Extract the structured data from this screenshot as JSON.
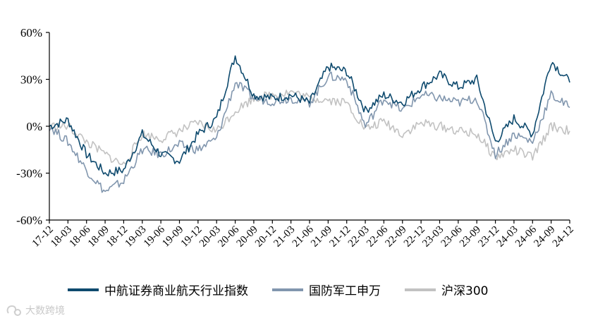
{
  "chart_data": {
    "type": "line",
    "title": "",
    "xlabel": "",
    "ylabel": "",
    "ylim": [
      -60,
      60
    ],
    "yticks": [
      "60%",
      "30%",
      "0%",
      "-30%",
      "-60%"
    ],
    "categories": [
      "17-12",
      "18-03",
      "18-06",
      "18-09",
      "18-12",
      "19-03",
      "19-06",
      "19-09",
      "19-12",
      "20-03",
      "20-06",
      "20-09",
      "20-12",
      "21-03",
      "21-06",
      "21-09",
      "21-12",
      "22-03",
      "22-06",
      "22-09",
      "22-12",
      "23-03",
      "23-06",
      "23-09",
      "23-12",
      "24-03",
      "24-06",
      "24-09",
      "24-12"
    ],
    "series": [
      {
        "name": "中航证券商业航天行业指数",
        "color": "#0e4a6e",
        "values": [
          0,
          4,
          -18,
          -30,
          -28,
          -5,
          -18,
          -22,
          -5,
          5,
          45,
          20,
          18,
          20,
          15,
          38,
          35,
          10,
          20,
          15,
          25,
          33,
          25,
          30,
          -10,
          5,
          -5,
          42,
          28
        ]
      },
      {
        "name": "国防军工申万",
        "color": "#8196ae",
        "values": [
          0,
          -10,
          -28,
          -42,
          -35,
          -15,
          -18,
          -12,
          -15,
          -8,
          28,
          18,
          16,
          18,
          15,
          32,
          30,
          0,
          18,
          10,
          20,
          18,
          15,
          18,
          -18,
          -5,
          -10,
          20,
          12
        ]
      },
      {
        "name": "沪深300",
        "color": "#c2c2c2",
        "values": [
          0,
          0,
          -10,
          -18,
          -25,
          -5,
          -8,
          -3,
          2,
          -3,
          10,
          18,
          20,
          22,
          18,
          17,
          15,
          -2,
          3,
          -5,
          2,
          0,
          -3,
          -5,
          -20,
          -15,
          -20,
          0,
          -3
        ]
      }
    ],
    "legend_position": "bottom",
    "grid": false
  },
  "watermark": {
    "text": "大数跨境"
  }
}
